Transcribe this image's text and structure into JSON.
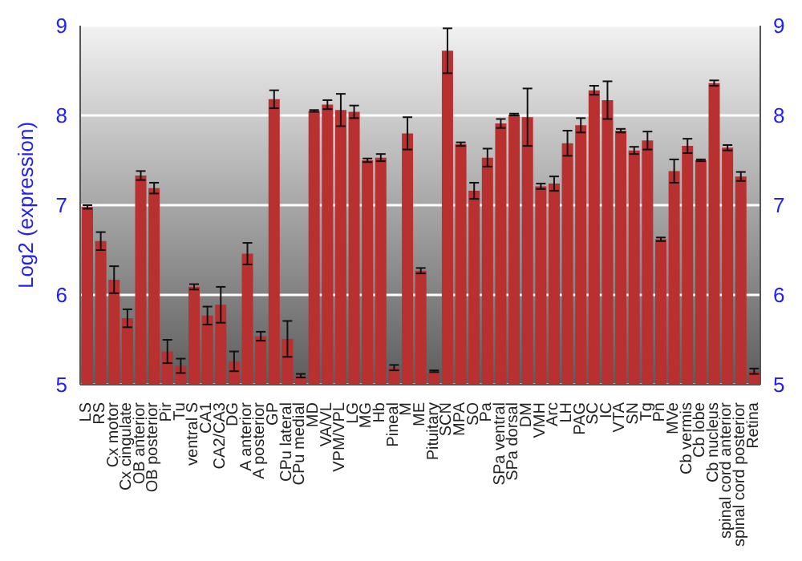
{
  "chart_data": {
    "type": "bar",
    "ylabel": "Log2 (expression)",
    "categories": [
      "LS",
      "RS",
      "Cx motor",
      "Cx cingulate",
      "OB anterior",
      "OB posterior",
      "Pir",
      "Tu",
      "ventral S",
      "CA1",
      "CA2/CA3",
      "DG",
      "A anterior",
      "A posterior",
      "GP",
      "CPu lateral",
      "CPu medial",
      "MD",
      "VA/VL",
      "VPM/VPL",
      "LG",
      "MG",
      "Hb",
      "Pineal",
      "M",
      "ME",
      "Pituitary",
      "SCN",
      "MPA",
      "SO",
      "Pa",
      "SPa ventral",
      "SPa dorsal",
      "DM",
      "VMH",
      "Arc",
      "LH",
      "PAG",
      "SC",
      "IC",
      "VTA",
      "SN",
      "Tg",
      "Pn",
      "MVe",
      "Cb vermis",
      "Cb lobe",
      "Cb nucleus",
      "spinal cord anterior",
      "spinal cord posterior",
      "Retina"
    ],
    "values": [
      6.98,
      6.6,
      6.17,
      5.74,
      7.33,
      7.19,
      5.37,
      5.21,
      6.09,
      5.77,
      5.89,
      5.26,
      6.46,
      5.54,
      8.18,
      5.51,
      5.1,
      8.05,
      8.12,
      8.06,
      8.04,
      7.5,
      7.53,
      5.19,
      7.8,
      6.27,
      5.15,
      8.72,
      7.68,
      7.16,
      7.53,
      7.91,
      8.01,
      7.98,
      7.21,
      7.24,
      7.69,
      7.89,
      8.28,
      8.17,
      7.83,
      7.61,
      7.72,
      6.62,
      7.38,
      7.66,
      7.5,
      8.36,
      7.64,
      7.32,
      5.15
    ],
    "errors": [
      0.02,
      0.1,
      0.15,
      0.1,
      0.05,
      0.06,
      0.13,
      0.08,
      0.03,
      0.1,
      0.2,
      0.11,
      0.12,
      0.05,
      0.1,
      0.2,
      0.02,
      0.01,
      0.05,
      0.18,
      0.07,
      0.02,
      0.04,
      0.03,
      0.18,
      0.03,
      0.01,
      0.25,
      0.02,
      0.09,
      0.1,
      0.05,
      0.01,
      0.32,
      0.03,
      0.08,
      0.14,
      0.08,
      0.05,
      0.21,
      0.02,
      0.04,
      0.1,
      0.02,
      0.13,
      0.08,
      0.01,
      0.03,
      0.03,
      0.05,
      0.03
    ],
    "color": "#b83030",
    "ylim": [
      5,
      9
    ],
    "yticks": [
      5,
      6,
      7,
      8,
      9
    ],
    "y2lim": [
      5,
      9
    ],
    "y2ticks": [
      5,
      6,
      7,
      8,
      9
    ],
    "grid": "y"
  }
}
